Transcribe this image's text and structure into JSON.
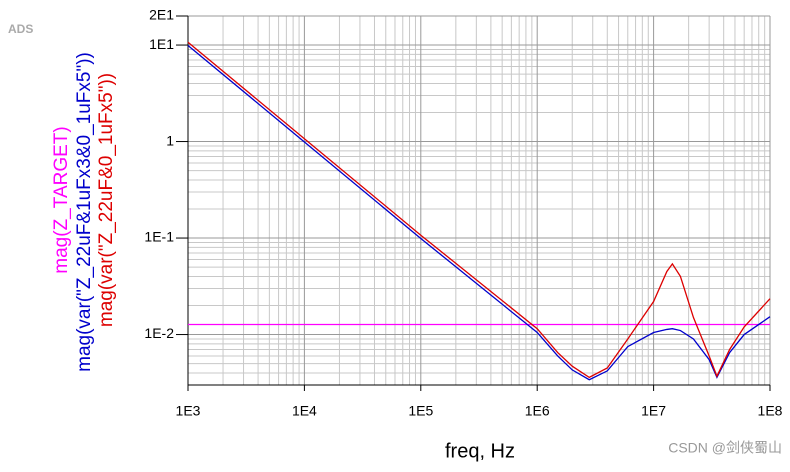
{
  "chart_data": {
    "type": "line",
    "logo": "ADS",
    "watermark": "CSDN @剑侠蜀山",
    "x_label": "freq, Hz",
    "log_x": true,
    "log_y": true,
    "grid": true,
    "minor_grid": true,
    "xlim": [
      1000,
      100000000
    ],
    "xticks": [
      {
        "value": 1000,
        "label": "1E3"
      },
      {
        "value": 10000,
        "label": "1E4"
      },
      {
        "value": 100000,
        "label": "1E5"
      },
      {
        "value": 1000000,
        "label": "1E6"
      },
      {
        "value": 10000000,
        "label": "1E7"
      },
      {
        "value": 100000000,
        "label": "1E8"
      }
    ],
    "ylim": [
      0.003,
      20
    ],
    "yticks": [
      {
        "value": 0.01,
        "label": "1E-2"
      },
      {
        "value": 0.1,
        "label": "1E-1"
      },
      1,
      {
        "value": 10,
        "label": "1E1"
      },
      {
        "value": 20,
        "label": "2E1"
      }
    ],
    "x": [
      1000,
      10000,
      100000,
      1000000,
      1500000,
      2000000,
      2800000,
      4000000,
      6000000,
      10000000,
      13000000,
      14500000,
      17000000,
      22000000,
      30000000,
      35000000,
      45000000,
      60000000,
      100000000
    ],
    "series": [
      {
        "name": "mag(Z_TARGET)",
        "color": "#ff00ff",
        "values": [
          0.0127,
          0.0127,
          0.0127,
          0.0127,
          0.0127,
          0.0127,
          0.0127,
          0.0127,
          0.0127,
          0.0127,
          0.0127,
          0.0127,
          0.0127,
          0.0127,
          0.0127,
          0.0127,
          0.0127,
          0.0127,
          0.0127
        ]
      },
      {
        "name": "mag(var(\"Z_22uF&1uFx3&0_1uFx5\"))",
        "color": "#0000cc",
        "values": [
          9.9,
          0.99,
          0.099,
          0.0105,
          0.006,
          0.0043,
          0.0034,
          0.0042,
          0.0075,
          0.0105,
          0.0113,
          0.0115,
          0.011,
          0.009,
          0.0055,
          0.0036,
          0.0065,
          0.01,
          0.0153
        ]
      },
      {
        "name": "mag(var(\"Z_22uF&0_1uFx5\"))",
        "color": "#dd0000",
        "values": [
          10.7,
          1.07,
          0.107,
          0.0115,
          0.0065,
          0.0047,
          0.0036,
          0.0045,
          0.009,
          0.022,
          0.045,
          0.054,
          0.04,
          0.015,
          0.006,
          0.0037,
          0.007,
          0.012,
          0.0235
        ]
      }
    ]
  }
}
